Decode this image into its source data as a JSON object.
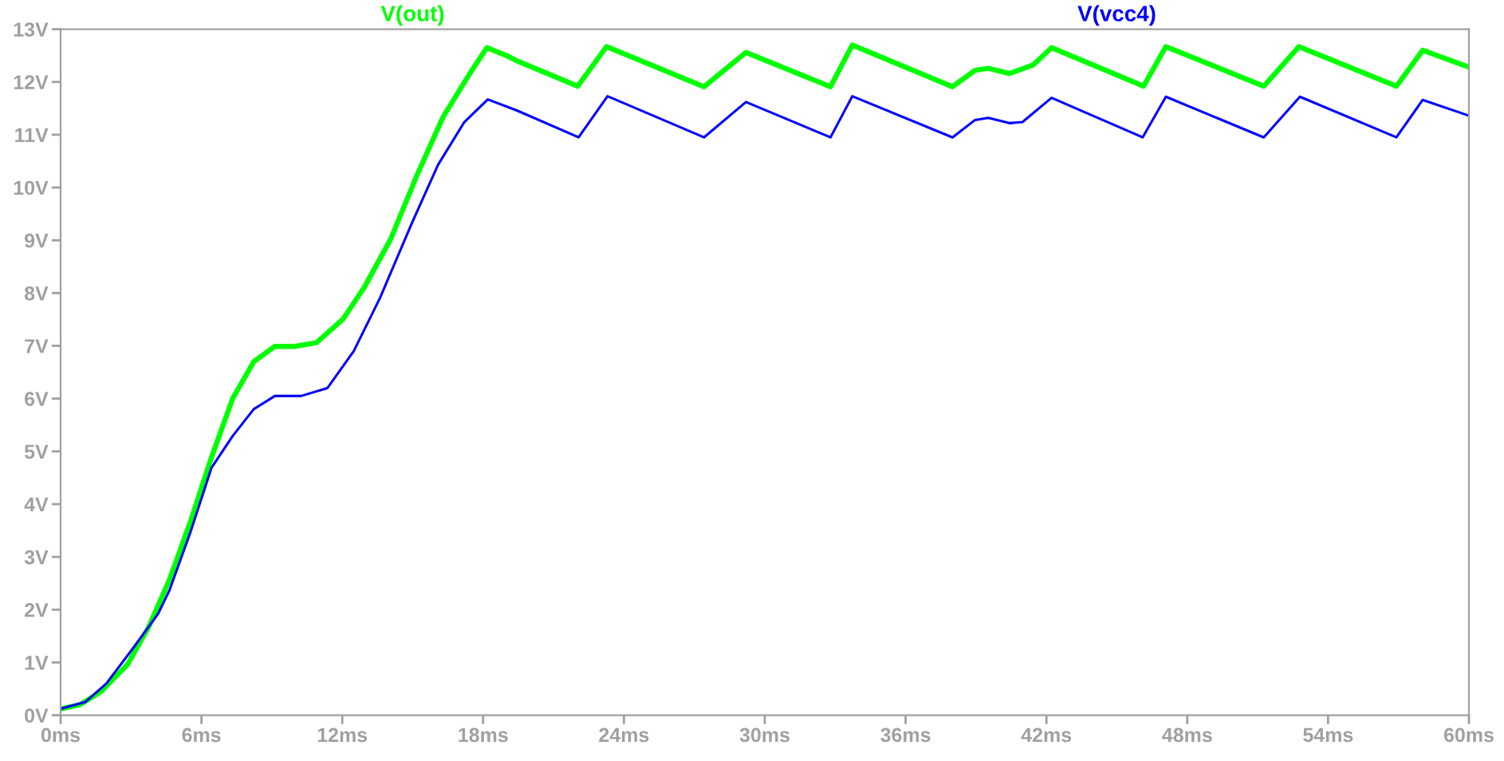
{
  "chart_data": {
    "type": "line",
    "xlim": [
      0,
      60
    ],
    "ylim": [
      0,
      13
    ],
    "xticks": [
      {
        "value": 0,
        "label": "0ms"
      },
      {
        "value": 6,
        "label": "6ms"
      },
      {
        "value": 12,
        "label": "12ms"
      },
      {
        "value": 18,
        "label": "18ms"
      },
      {
        "value": 24,
        "label": "24ms"
      },
      {
        "value": 30,
        "label": "30ms"
      },
      {
        "value": 36,
        "label": "36ms"
      },
      {
        "value": 42,
        "label": "42ms"
      },
      {
        "value": 48,
        "label": "48ms"
      },
      {
        "value": 54,
        "label": "54ms"
      },
      {
        "value": 60,
        "label": "60ms"
      }
    ],
    "yticks": [
      {
        "value": 0,
        "label": "0V"
      },
      {
        "value": 1,
        "label": "1V"
      },
      {
        "value": 2,
        "label": "2V"
      },
      {
        "value": 3,
        "label": "3V"
      },
      {
        "value": 4,
        "label": "4V"
      },
      {
        "value": 5,
        "label": "5V"
      },
      {
        "value": 6,
        "label": "6V"
      },
      {
        "value": 7,
        "label": "7V"
      },
      {
        "value": 8,
        "label": "8V"
      },
      {
        "value": 9,
        "label": "9V"
      },
      {
        "value": 10,
        "label": "10V"
      },
      {
        "value": 11,
        "label": "11V"
      },
      {
        "value": 12,
        "label": "12V"
      },
      {
        "value": 13,
        "label": "13V"
      }
    ],
    "grid": false,
    "line_style": "solid",
    "series": [
      {
        "name": "V(out)",
        "color": "#00ff00",
        "x": [
          0,
          0.83,
          1.73,
          2.85,
          3.74,
          4.64,
          5.54,
          6.43,
          7.33,
          8.23,
          9.13,
          10.0,
          10.9,
          12.04,
          12.94,
          14.06,
          15.18,
          16.3,
          17.42,
          18.16,
          19.0,
          19.44,
          22.03,
          23.26,
          27.41,
          29.2,
          32.8,
          33.73,
          38.0,
          38.96,
          39.52,
          40.42,
          41.43,
          42.22,
          46.14,
          47.09,
          51.26,
          52.76,
          56.91,
          58.03,
          59.94
        ],
        "values": [
          0.12,
          0.2,
          0.45,
          0.96,
          1.66,
          2.57,
          3.68,
          4.89,
          6.0,
          6.7,
          6.99,
          6.99,
          7.06,
          7.51,
          8.11,
          9.02,
          10.23,
          11.34,
          12.15,
          12.65,
          12.5,
          12.4,
          11.92,
          12.67,
          11.91,
          12.56,
          11.91,
          12.7,
          11.91,
          12.22,
          12.26,
          12.16,
          12.32,
          12.65,
          11.92,
          12.67,
          11.92,
          12.67,
          11.92,
          12.6,
          12.29
        ]
      },
      {
        "name": "V(vcc4)",
        "color": "#0000ff",
        "x": [
          0,
          1.05,
          1.95,
          3.07,
          4.15,
          4.64,
          5.54,
          6.43,
          7.33,
          8.23,
          9.13,
          10.25,
          11.37,
          12.49,
          13.61,
          14.96,
          16.08,
          17.2,
          18.2,
          19.44,
          22.07,
          23.3,
          27.41,
          29.2,
          32.8,
          33.73,
          38.0,
          38.96,
          39.52,
          40.42,
          40.98,
          42.22,
          46.1,
          47.09,
          51.26,
          52.8,
          56.91,
          58.03,
          59.94
        ],
        "values": [
          0.12,
          0.25,
          0.6,
          1.26,
          1.92,
          2.37,
          3.48,
          4.69,
          5.29,
          5.8,
          6.05,
          6.05,
          6.2,
          6.9,
          7.91,
          9.32,
          10.43,
          11.24,
          11.67,
          11.46,
          10.95,
          11.73,
          10.95,
          11.62,
          10.95,
          11.73,
          10.95,
          11.28,
          11.32,
          11.22,
          11.24,
          11.7,
          10.95,
          11.72,
          10.95,
          11.72,
          10.95,
          11.66,
          11.37
        ]
      }
    ]
  }
}
